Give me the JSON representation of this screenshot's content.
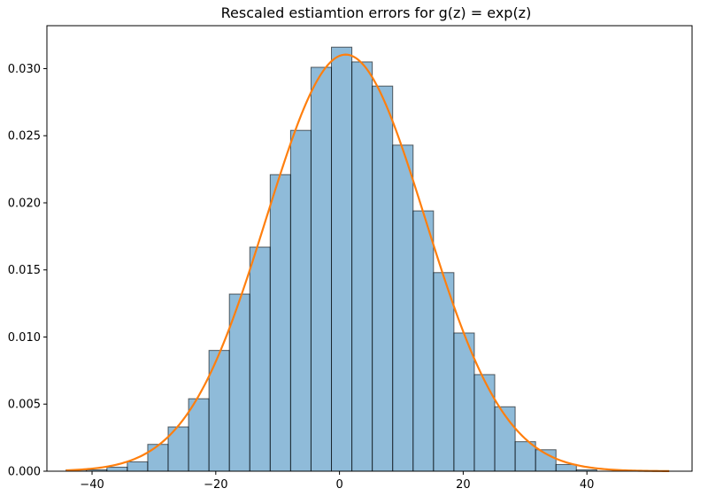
{
  "chart_data": {
    "type": "bar",
    "title": "Rescaled estiamtion errors for g(z) = exp(z)",
    "xlabel": "",
    "ylabel": "",
    "xlim": [
      -47.3,
      57
    ],
    "ylim": [
      0,
      0.0332
    ],
    "xticks": [
      -40,
      -20,
      0,
      20,
      40
    ],
    "xtick_labels": [
      "−40",
      "−20",
      "0",
      "20",
      "40"
    ],
    "yticks": [
      0,
      0.005,
      0.01,
      0.015,
      0.02,
      0.025,
      0.03
    ],
    "ytick_labels": [
      "0.000",
      "0.005",
      "0.010",
      "0.015",
      "0.020",
      "0.025",
      "0.030"
    ],
    "grid": false,
    "bin_edges": [
      -44.2,
      -40.9,
      -37.6,
      -34.3,
      -31.0,
      -27.7,
      -24.4,
      -21.1,
      -17.8,
      -14.5,
      -11.2,
      -7.9,
      -4.6,
      -1.3,
      2.0,
      5.3,
      8.6,
      11.9,
      15.2,
      18.5,
      21.8,
      25.1,
      28.4,
      31.7,
      35.0,
      38.3,
      41.6
    ],
    "series": [
      {
        "type": "histogram",
        "color": "#1f77b4",
        "values": [
          0.0001,
          0.0001,
          0.0003,
          0.0007,
          0.002,
          0.0033,
          0.0054,
          0.009,
          0.0132,
          0.0167,
          0.0221,
          0.0254,
          0.0301,
          0.0316,
          0.0305,
          0.0287,
          0.0243,
          0.0194,
          0.0148,
          0.0103,
          0.0072,
          0.0048,
          0.0022,
          0.0016,
          0.0005,
          0.0001
        ]
      },
      {
        "type": "line",
        "color": "#ff7f0e",
        "curve": "normal-pdf",
        "mean": 1.0,
        "std": 12.85,
        "x_range": [
          -44.2,
          53.3
        ]
      }
    ]
  }
}
